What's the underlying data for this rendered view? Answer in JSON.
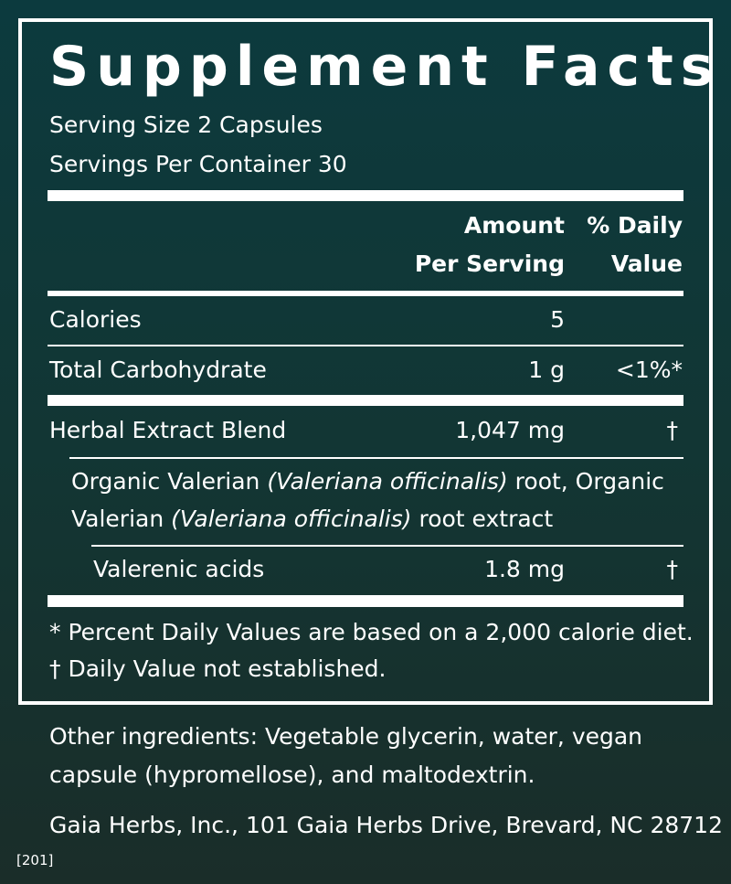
{
  "title": "Supplement Facts",
  "serving_size": "Serving Size 2 Capsules",
  "servings_per_container": "Servings Per Container 30",
  "header": {
    "amount_line1": "Amount",
    "amount_line2": "Per Serving",
    "dv_line1": "% Daily",
    "dv_line2": "Value"
  },
  "rows": [
    {
      "name": "Calories",
      "amount": "5",
      "dv": ""
    },
    {
      "name": "Total Carbohydrate",
      "amount": "1 g",
      "dv": "<1%*"
    },
    {
      "name": "Herbal Extract Blend",
      "amount": "1,047 mg",
      "dv": "†"
    },
    {
      "name": "Valerenic acids",
      "amount": "1.8 mg",
      "dv": "†"
    }
  ],
  "blend_desc": {
    "p1": "Organic Valerian ",
    "i1": "(Valeriana officinalis)",
    "p2": " root, Organic",
    "p3": "Valerian ",
    "i2": "(Valeriana officinalis)",
    "p4": " root extract"
  },
  "footnotes": [
    "*  Percent Daily Values are based on a 2,000 calorie diet.",
    "† Daily Value not established."
  ],
  "other_ingredients": [
    "Other ingredients: Vegetable glycerin, water, vegan",
    "capsule (hypromellose), and maltodextrin."
  ],
  "address": "Gaia Herbs, Inc., 101 Gaia Herbs Drive, Brevard, NC 28712",
  "code": "[201]",
  "colors": {
    "background_top": "#0c3a3e",
    "background_bottom": "#1a2d29",
    "text": "#ffffff"
  }
}
